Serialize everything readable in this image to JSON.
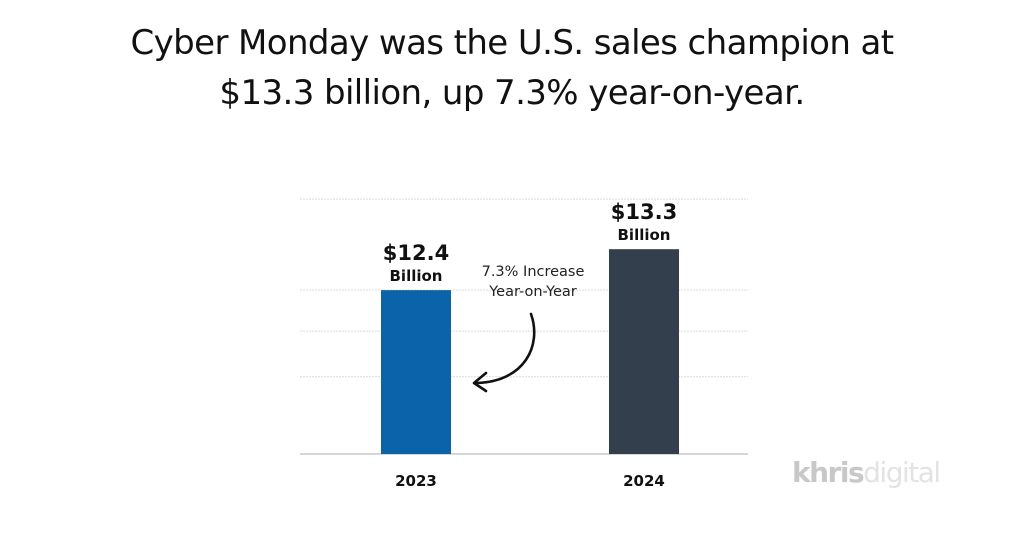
{
  "headline": {
    "line1": "Cyber Monday was the U.S. sales champion at",
    "line2": "$13.3 billion, up 7.3% year-on-year."
  },
  "chart_data": {
    "type": "bar",
    "title": "Cyber Monday was the U.S. sales champion at $13.3 billion, up 7.3% year-on-year.",
    "xlabel": "",
    "ylabel": "",
    "categories": [
      "2023",
      "2024"
    ],
    "values": [
      12.4,
      13.3
    ],
    "unit": "Billion USD",
    "data_labels": [
      {
        "value": "$12.4",
        "unit": "Billion"
      },
      {
        "value": "$13.3",
        "unit": "Billion"
      }
    ],
    "colors": [
      "#0b64a9",
      "#333f4c"
    ],
    "ylim": [
      8.8,
      14.6
    ],
    "grid": true,
    "gridlines": [
      10.5,
      11.5,
      12.4,
      14.4
    ],
    "annotation": {
      "line1": "7.3% Increase",
      "line2": "Year-on-Year",
      "points_to": "2023",
      "arrow": "curved-arrow-left"
    },
    "legend": "none"
  },
  "watermark": {
    "bold": "khris",
    "light": "digital"
  }
}
